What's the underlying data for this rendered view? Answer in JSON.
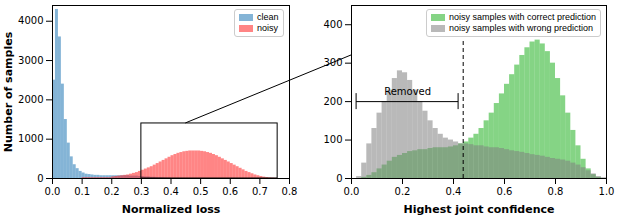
{
  "chart_data": [
    {
      "type": "histogram",
      "xlabel": "Normalized loss",
      "ylabel": "Number of samples",
      "bins": [
        0,
        0.01,
        0.02,
        0.03,
        0.04,
        0.05,
        0.06,
        0.07,
        0.08,
        0.09,
        0.1,
        0.11,
        0.12,
        0.13,
        0.14,
        0.15,
        0.16,
        0.17,
        0.18,
        0.19,
        0.2,
        0.21,
        0.22,
        0.23,
        0.24,
        0.25,
        0.26,
        0.27,
        0.28,
        0.29,
        0.3,
        0.31,
        0.32,
        0.33,
        0.34,
        0.35,
        0.36,
        0.37,
        0.38,
        0.39,
        0.4,
        0.41,
        0.42,
        0.43,
        0.44,
        0.45,
        0.46,
        0.47,
        0.48,
        0.49,
        0.5,
        0.51,
        0.52,
        0.53,
        0.54,
        0.55,
        0.56,
        0.57,
        0.58,
        0.59,
        0.6,
        0.61,
        0.62,
        0.63,
        0.64,
        0.65,
        0.66,
        0.67,
        0.68,
        0.69,
        0.7,
        0.71,
        0.72,
        0.73,
        0.74,
        0.75,
        0.76,
        0.77,
        0.78,
        0.79,
        0.8
      ],
      "series": [
        {
          "name": "clean",
          "color": "#1f77b4",
          "values": [
            2500,
            4300,
            3600,
            2400,
            1500,
            900,
            550,
            350,
            250,
            180,
            140,
            110,
            100,
            90,
            80,
            80,
            70,
            70,
            70,
            70,
            70,
            70,
            70,
            70,
            70,
            70,
            60,
            60,
            60,
            50,
            50,
            40,
            40,
            30,
            30,
            20,
            20,
            15,
            10,
            10,
            0,
            0,
            0,
            0,
            0,
            0,
            0,
            0,
            0,
            0,
            0,
            0,
            0,
            0,
            0,
            0,
            0,
            0,
            0,
            0,
            0,
            0,
            0,
            0,
            0,
            0,
            0,
            0,
            0,
            0,
            0,
            0,
            0,
            0,
            0,
            0,
            0,
            0,
            0,
            0
          ]
        },
        {
          "name": "noisy",
          "color": "#ff2020",
          "values": [
            0,
            0,
            0,
            0,
            0,
            0,
            0,
            0,
            0,
            0,
            20,
            20,
            20,
            20,
            20,
            20,
            20,
            20,
            20,
            20,
            40,
            50,
            60,
            70,
            80,
            90,
            110,
            130,
            150,
            180,
            210,
            240,
            270,
            300,
            340,
            380,
            420,
            460,
            500,
            540,
            580,
            610,
            640,
            660,
            680,
            690,
            700,
            700,
            700,
            700,
            690,
            680,
            660,
            640,
            610,
            580,
            540,
            500,
            460,
            420,
            380,
            340,
            300,
            260,
            220,
            180,
            150,
            120,
            90,
            70,
            50,
            35,
            25,
            15,
            10,
            5,
            0,
            0,
            0,
            0
          ]
        }
      ],
      "xlim": [
        0,
        0.8
      ],
      "ylim": [
        0,
        4400
      ],
      "xticks": [
        {
          "value": 0,
          "label": "0.0"
        },
        {
          "value": 0.1,
          "label": "0.1"
        },
        {
          "value": 0.2,
          "label": "0.2"
        },
        {
          "value": 0.3,
          "label": "0.3"
        },
        {
          "value": 0.4,
          "label": "0.4"
        },
        {
          "value": 0.5,
          "label": "0.5"
        },
        {
          "value": 0.6,
          "label": "0.6"
        },
        {
          "value": 0.7,
          "label": "0.7"
        },
        {
          "value": 0.8,
          "label": "0.8"
        }
      ],
      "yticks": [
        0,
        1000,
        2000,
        3000,
        4000
      ],
      "legend": "upper right"
    },
    {
      "type": "histogram",
      "xlabel": "Highest joint confidence",
      "bins": [
        0,
        0.02,
        0.04,
        0.06,
        0.08,
        0.1,
        0.12,
        0.14,
        0.16,
        0.18,
        0.2,
        0.22,
        0.24,
        0.26,
        0.28,
        0.3,
        0.32,
        0.34,
        0.36,
        0.38,
        0.4,
        0.42,
        0.44,
        0.46,
        0.48,
        0.5,
        0.52,
        0.54,
        0.56,
        0.58,
        0.6,
        0.62,
        0.64,
        0.66,
        0.68,
        0.7,
        0.72,
        0.74,
        0.76,
        0.78,
        0.8,
        0.82,
        0.84,
        0.86,
        0.88,
        0.9,
        0.92,
        0.94,
        0.96,
        0.98,
        1.0
      ],
      "series": [
        {
          "name": "noisy samples with correct prediction",
          "color": "#20b020",
          "values": [
            0,
            0,
            3,
            8,
            15,
            25,
            35,
            45,
            55,
            60,
            65,
            70,
            72,
            75,
            75,
            78,
            80,
            80,
            80,
            82,
            85,
            90,
            95,
            105,
            115,
            130,
            150,
            170,
            195,
            220,
            245,
            270,
            295,
            320,
            340,
            355,
            360,
            350,
            330,
            300,
            260,
            215,
            170,
            125,
            85,
            50,
            25,
            10,
            3,
            0
          ]
        },
        {
          "name": "noisy samples with wrong prediction",
          "color": "#808080",
          "values": [
            0,
            5,
            40,
            90,
            130,
            170,
            200,
            230,
            260,
            280,
            275,
            255,
            230,
            200,
            175,
            150,
            130,
            115,
            105,
            100,
            95,
            90,
            90,
            88,
            85,
            85,
            82,
            80,
            80,
            78,
            75,
            72,
            70,
            68,
            65,
            62,
            60,
            58,
            55,
            52,
            50,
            48,
            45,
            40,
            35,
            28,
            20,
            12,
            5,
            2
          ]
        }
      ],
      "xlim": [
        0,
        1.0
      ],
      "ylim": [
        0,
        450
      ],
      "xticks": [
        {
          "value": 0,
          "label": "0.0"
        },
        {
          "value": 0.2,
          "label": "0.2"
        },
        {
          "value": 0.4,
          "label": "0.4"
        },
        {
          "value": 0.6,
          "label": "0.6"
        },
        {
          "value": 0.8,
          "label": "0.8"
        },
        {
          "value": 1.0,
          "label": "1.0"
        }
      ],
      "yticks": [
        0,
        100,
        200,
        300,
        400
      ],
      "threshold": 0.44,
      "annotations": [
        {
          "text": "Removed",
          "x1": 0.02,
          "x2": 0.42,
          "y": 200
        }
      ],
      "legend": "upper right"
    }
  ]
}
